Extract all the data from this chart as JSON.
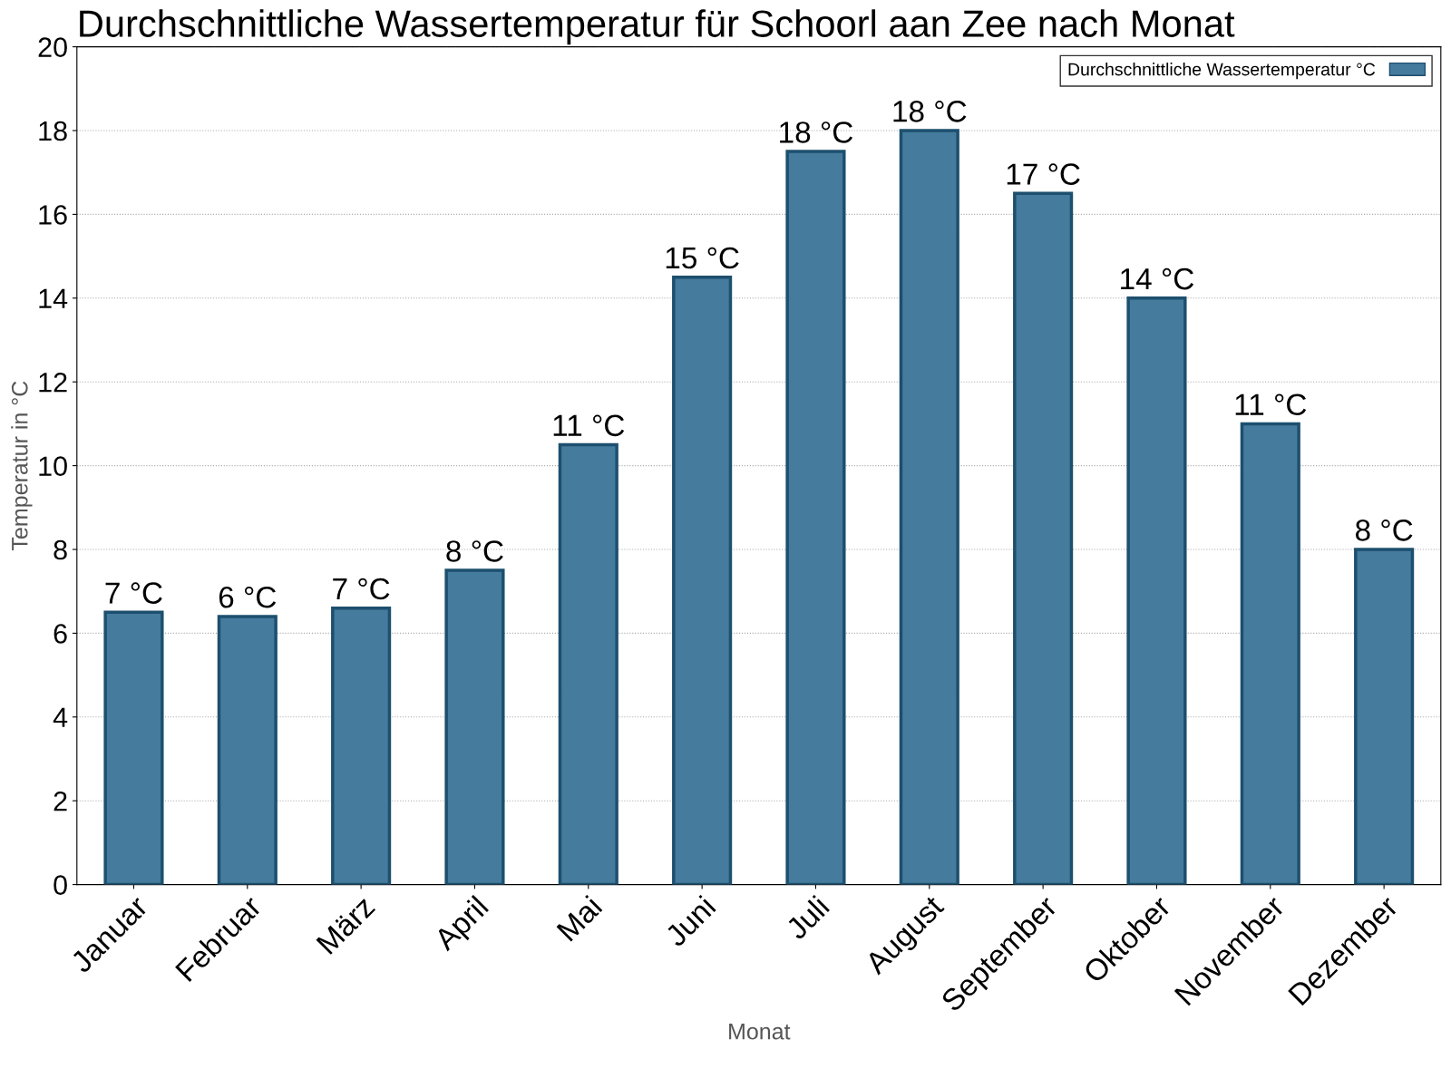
{
  "chart_data": {
    "type": "bar",
    "title": "Durchschnittliche Wassertemperatur für Schoorl aan Zee nach Monat",
    "xlabel": "Monat",
    "ylabel": "Temperatur in °C",
    "categories": [
      "Januar",
      "Februar",
      "März",
      "April",
      "Mai",
      "Juni",
      "Juli",
      "August",
      "September",
      "Oktober",
      "November",
      "Dezember"
    ],
    "series": [
      {
        "name": "Durchschnittliche Wassertemperatur °C",
        "color": "#457b9d",
        "values": [
          6.5,
          6.4,
          6.6,
          7.5,
          10.5,
          14.5,
          17.5,
          18.0,
          16.5,
          14.0,
          11.0,
          8.0
        ],
        "value_labels": [
          "7 °C",
          "6 °C",
          "7 °C",
          "8 °C",
          "11 °C",
          "15 °C",
          "18 °C",
          "18 °C",
          "17 °C",
          "14 °C",
          "11 °C",
          "8 °C"
        ]
      }
    ],
    "ylim": [
      0,
      20
    ],
    "yticks": [
      0,
      2,
      4,
      6,
      8,
      10,
      12,
      14,
      16,
      18,
      20
    ],
    "grid": "y",
    "legend": "top right"
  }
}
